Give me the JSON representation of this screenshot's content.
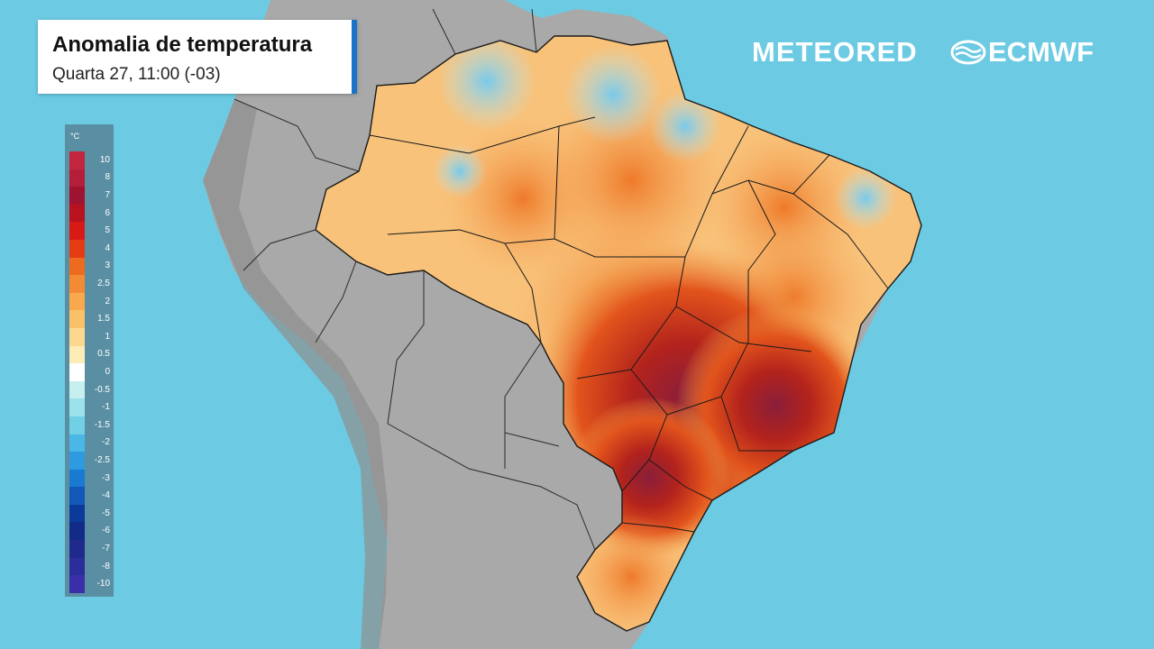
{
  "header": {
    "title": "Anomalia de temperatura",
    "subtitle": "Quarta 27, 11:00 (-03)"
  },
  "logos": {
    "meteored": "METEORED",
    "ecmwf": "ECMWF"
  },
  "legend": {
    "unit": "°C",
    "ticks": [
      "10",
      "8",
      "7",
      "6",
      "5",
      "4",
      "3",
      "2.5",
      "2",
      "1.5",
      "1",
      "0.5",
      "0",
      "-0.5",
      "-1",
      "-1.5",
      "-2",
      "-2.5",
      "-3",
      "-4",
      "-5",
      "-6",
      "-7",
      "-8",
      "-10"
    ],
    "colors": [
      "#c2263f",
      "#b51e3a",
      "#9f1230",
      "#b8121e",
      "#d71a16",
      "#e53b12",
      "#ee6a1f",
      "#f58a35",
      "#f9a84c",
      "#fbc168",
      "#fcd88f",
      "#fdebb8",
      "#ffffff",
      "#c6eff0",
      "#9be2ea",
      "#6fd0e6",
      "#4bb7e7",
      "#2e9ae0",
      "#1a79d0",
      "#1158b8",
      "#0b3a9a",
      "#112b86",
      "#1f2a8c",
      "#2b2e9a",
      "#3a2fa8"
    ]
  },
  "map": {
    "ocean_color": "#6ccbe3",
    "land_color": "#a9a9a9",
    "anomaly_colors": {
      "neutral": "#fde0a8",
      "warm": "#f7a24c",
      "hot": "#e2541c",
      "very_hot": "#b3231c",
      "extreme": "#8a1e3a",
      "cool": "#8fd4ec"
    }
  }
}
